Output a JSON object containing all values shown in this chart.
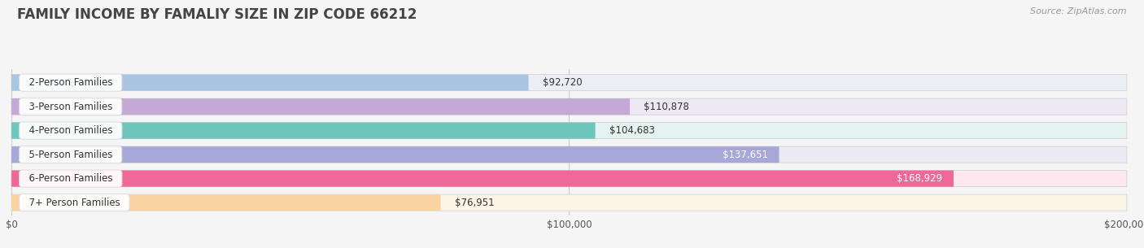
{
  "title": "FAMILY INCOME BY FAMALIY SIZE IN ZIP CODE 66212",
  "source": "Source: ZipAtlas.com",
  "categories": [
    "2-Person Families",
    "3-Person Families",
    "4-Person Families",
    "5-Person Families",
    "6-Person Families",
    "7+ Person Families"
  ],
  "values": [
    92720,
    110878,
    104683,
    137651,
    168929,
    76951
  ],
  "bar_colors": [
    "#aac5e2",
    "#c5a8d6",
    "#6ec5bc",
    "#a8a8d8",
    "#f06898",
    "#f9d4a0"
  ],
  "bar_bg_colors": [
    "#eaeff6",
    "#eee8f4",
    "#e4f3f1",
    "#eceaf5",
    "#fde8f0",
    "#fdf4e8"
  ],
  "value_label_inside": [
    false,
    false,
    false,
    true,
    true,
    false
  ],
  "xlim": [
    0,
    200000
  ],
  "xticks": [
    0,
    100000,
    200000
  ],
  "xtick_labels": [
    "$0",
    "$100,000",
    "$200,000"
  ],
  "value_labels": [
    "$92,720",
    "$110,878",
    "$104,683",
    "$137,651",
    "$168,929",
    "$76,951"
  ],
  "background_color": "#f5f5f5",
  "title_fontsize": 12,
  "label_fontsize": 8.5,
  "value_fontsize": 8.5,
  "tick_fontsize": 8.5
}
